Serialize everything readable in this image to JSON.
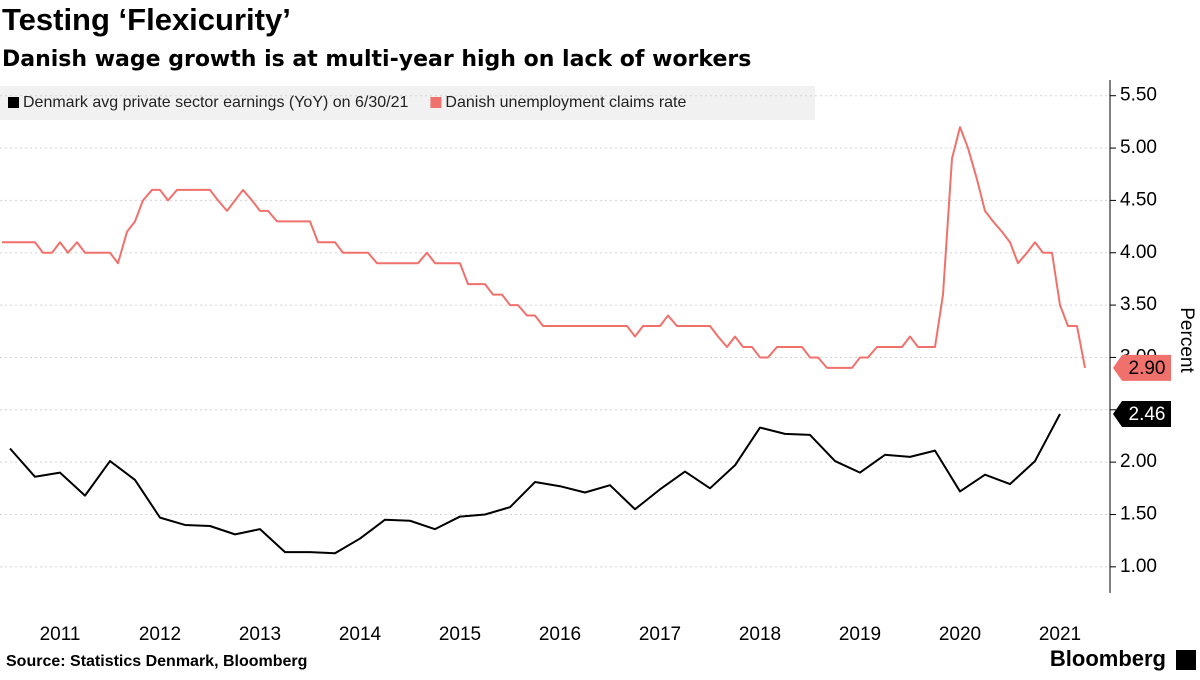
{
  "chart_data": {
    "type": "line",
    "title": "Testing ‘Flexicurity’",
    "subtitle": "Danish wage growth is at multi-year high on lack of workers",
    "y_label": "Percent",
    "source": "Source: Statistics Denmark, Bloomberg",
    "logo": "Bloomberg",
    "xlim": [
      2010.9,
      2022
    ],
    "xticks": [
      2011,
      2012,
      2013,
      2014,
      2015,
      2016,
      2017,
      2018,
      2019,
      2020,
      2021
    ],
    "ylim": [
      0.75,
      5.65
    ],
    "yticks": [
      {
        "value": 1,
        "label": "1.00"
      },
      {
        "value": 1.5,
        "label": "1.50"
      },
      {
        "value": 2,
        "label": "2.00"
      },
      {
        "value": 2.5,
        "label": "2.50"
      },
      {
        "value": 3,
        "label": "3.00"
      },
      {
        "value": 3.5,
        "label": "3.50"
      },
      {
        "value": 4,
        "label": "4.00"
      },
      {
        "value": 4.5,
        "label": "4.50"
      },
      {
        "value": 5,
        "label": "5.00"
      },
      {
        "value": 5.5,
        "label": "5.50"
      }
    ],
    "grid": true,
    "series": [
      {
        "name": "Denmark avg private sector earnings (YoY) on 6/30/21",
        "color": "#000000",
        "x": [
          2011,
          2011.25,
          2011.5,
          2011.75,
          2012,
          2012.25,
          2012.5,
          2012.75,
          2013,
          2013.25,
          2013.5,
          2013.75,
          2014,
          2014.25,
          2014.5,
          2014.75,
          2015,
          2015.25,
          2015.5,
          2015.75,
          2016,
          2016.25,
          2016.5,
          2016.75,
          2017,
          2017.25,
          2017.5,
          2017.75,
          2018,
          2018.25,
          2018.5,
          2018.75,
          2019,
          2019.25,
          2019.5,
          2019.75,
          2020,
          2020.25,
          2020.5,
          2020.75,
          2021,
          2021.25,
          2021.5
        ],
        "values": [
          2.13,
          1.86,
          1.9,
          1.68,
          2.01,
          1.83,
          1.47,
          1.4,
          1.39,
          1.31,
          1.36,
          1.14,
          1.14,
          1.13,
          1.27,
          1.45,
          1.44,
          1.36,
          1.48,
          1.5,
          1.57,
          1.81,
          1.77,
          1.71,
          1.78,
          1.55,
          1.74,
          1.91,
          1.75,
          1.97,
          2.33,
          2.27,
          2.26,
          2.01,
          1.9,
          2.07,
          2.05,
          2.11,
          1.72,
          1.88,
          1.79,
          2.01,
          2.46
        ],
        "value_labels": [
          null,
          null,
          null,
          null,
          null,
          null,
          null,
          null,
          null,
          null,
          null,
          null,
          null,
          null,
          null,
          null,
          null,
          null,
          null,
          null,
          null,
          null,
          null,
          null,
          null,
          null,
          null,
          null,
          null,
          null,
          null,
          null,
          null,
          null,
          null,
          null,
          null,
          null,
          null,
          null,
          null,
          null,
          "2.46"
        ]
      },
      {
        "name": "Danish unemployment claims rate",
        "color": "#f0716c",
        "x": [
          2010.92,
          2011,
          2011.08,
          2011.17,
          2011.25,
          2011.33,
          2011.42,
          2011.5,
          2011.58,
          2011.67,
          2011.75,
          2011.83,
          2011.92,
          2012,
          2012.08,
          2012.17,
          2012.25,
          2012.33,
          2012.42,
          2012.5,
          2012.58,
          2012.67,
          2012.75,
          2012.83,
          2012.92,
          2013,
          2013.08,
          2013.17,
          2013.25,
          2013.33,
          2013.42,
          2013.5,
          2013.58,
          2013.67,
          2013.75,
          2013.83,
          2013.92,
          2014,
          2014.08,
          2014.17,
          2014.25,
          2014.33,
          2014.42,
          2014.5,
          2014.58,
          2014.67,
          2014.75,
          2014.83,
          2014.92,
          2015,
          2015.08,
          2015.17,
          2015.25,
          2015.33,
          2015.42,
          2015.5,
          2015.58,
          2015.67,
          2015.75,
          2015.83,
          2015.92,
          2016,
          2016.08,
          2016.17,
          2016.25,
          2016.33,
          2016.42,
          2016.5,
          2016.58,
          2016.67,
          2016.75,
          2016.83,
          2016.92,
          2017,
          2017.08,
          2017.17,
          2017.25,
          2017.33,
          2017.42,
          2017.5,
          2017.58,
          2017.67,
          2017.75,
          2017.83,
          2017.92,
          2018,
          2018.08,
          2018.17,
          2018.25,
          2018.33,
          2018.42,
          2018.5,
          2018.58,
          2018.67,
          2018.75,
          2018.83,
          2018.92,
          2019,
          2019.08,
          2019.17,
          2019.25,
          2019.33,
          2019.42,
          2019.5,
          2019.58,
          2019.67,
          2019.75,
          2019.83,
          2019.92,
          2020,
          2020.08,
          2020.17,
          2020.25,
          2020.33,
          2020.42,
          2020.5,
          2020.58,
          2020.67,
          2020.75,
          2020.83,
          2020.92,
          2021,
          2021.08,
          2021.17,
          2021.25,
          2021.33,
          2021.42,
          2021.5,
          2021.58,
          2021.67,
          2021.75
        ],
        "values": [
          4.1,
          4.1,
          4.1,
          4.1,
          4.1,
          4.0,
          4.0,
          4.1,
          4.0,
          4.1,
          4.0,
          4.0,
          4.0,
          4.0,
          3.9,
          4.2,
          4.3,
          4.5,
          4.6,
          4.6,
          4.5,
          4.6,
          4.6,
          4.6,
          4.6,
          4.6,
          4.5,
          4.4,
          4.5,
          4.6,
          4.5,
          4.4,
          4.4,
          4.3,
          4.3,
          4.3,
          4.3,
          4.3,
          4.1,
          4.1,
          4.1,
          4.0,
          4.0,
          4.0,
          4.0,
          3.9,
          3.9,
          3.9,
          3.9,
          3.9,
          3.9,
          4.0,
          3.9,
          3.9,
          3.9,
          3.9,
          3.7,
          3.7,
          3.7,
          3.6,
          3.6,
          3.5,
          3.5,
          3.4,
          3.4,
          3.3,
          3.3,
          3.3,
          3.3,
          3.3,
          3.3,
          3.3,
          3.3,
          3.3,
          3.3,
          3.3,
          3.2,
          3.3,
          3.3,
          3.3,
          3.4,
          3.3,
          3.3,
          3.3,
          3.3,
          3.3,
          3.2,
          3.1,
          3.2,
          3.1,
          3.1,
          3.0,
          3.0,
          3.1,
          3.1,
          3.1,
          3.1,
          3.0,
          3.0,
          2.9,
          2.9,
          2.9,
          2.9,
          3.0,
          3.0,
          3.1,
          3.1,
          3.1,
          3.1,
          3.2,
          3.1,
          3.1,
          3.1,
          3.6,
          4.9,
          5.2,
          5.0,
          4.7,
          4.4,
          4.3,
          4.2,
          4.1,
          3.9,
          4.0,
          4.1,
          4.0,
          4.0,
          3.5,
          3.3,
          3.3,
          2.9
        ],
        "value_labels": [
          null,
          null,
          null,
          null,
          null,
          null,
          null,
          null,
          null,
          null,
          null,
          null,
          null,
          null,
          null,
          null,
          null,
          null,
          null,
          null,
          null,
          null,
          null,
          null,
          null,
          null,
          null,
          null,
          null,
          null,
          null,
          null,
          null,
          null,
          null,
          null,
          null,
          null,
          null,
          null,
          null,
          null,
          null,
          null,
          null,
          null,
          null,
          null,
          null,
          null,
          null,
          null,
          null,
          null,
          null,
          null,
          null,
          null,
          null,
          null,
          null,
          null,
          null,
          null,
          null,
          null,
          null,
          null,
          null,
          null,
          null,
          null,
          null,
          null,
          null,
          null,
          null,
          null,
          null,
          null,
          null,
          null,
          null,
          null,
          null,
          null,
          null,
          null,
          null,
          null,
          null,
          null,
          null,
          null,
          null,
          null,
          null,
          null,
          null,
          null,
          null,
          null,
          null,
          null,
          null,
          null,
          null,
          null,
          null,
          null,
          null,
          null,
          null,
          null,
          null,
          null,
          null,
          null,
          null,
          null,
          null,
          null,
          null,
          null,
          null,
          null,
          null,
          null,
          null,
          null,
          "2.90"
        ]
      }
    ]
  }
}
